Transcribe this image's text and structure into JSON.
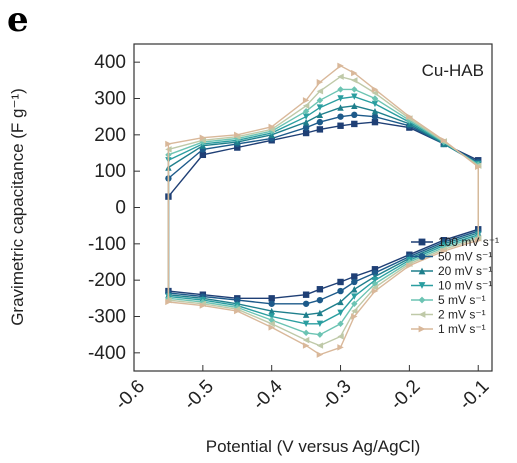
{
  "panel_letter": "e",
  "chart_data": {
    "type": "line",
    "title": "",
    "annotation": "Cu-HAB",
    "xlabel": "Potential (V versus Ag/AgCl)",
    "ylabel": "Gravimetric capacitance (F g⁻¹)",
    "xlim": [
      -0.6,
      -0.08
    ],
    "ylim": [
      -450,
      450
    ],
    "x_ticks": [
      "-0.6",
      "-0.5",
      "-0.4",
      "-0.3",
      "-0.2",
      "-0.1"
    ],
    "x_tick_values": [
      -0.6,
      -0.5,
      -0.4,
      -0.3,
      -0.2,
      -0.1
    ],
    "y_ticks": [
      "400",
      "300",
      "200",
      "100",
      "0",
      "-100",
      "-200",
      "-300",
      "-400"
    ],
    "y_tick_values": [
      400,
      300,
      200,
      100,
      0,
      -100,
      -200,
      -300,
      -400
    ],
    "grid": false,
    "legend_position": "bottom-right",
    "x": [
      -0.55,
      -0.5,
      -0.45,
      -0.4,
      -0.35,
      -0.33,
      -0.3,
      -0.28,
      -0.25,
      -0.2,
      -0.15,
      -0.1
    ],
    "series": [
      {
        "name": "100 mV s⁻¹",
        "color": "#1f3f75",
        "marker": "square",
        "upper": [
          30,
          145,
          165,
          185,
          205,
          215,
          225,
          230,
          235,
          220,
          175,
          130
        ],
        "lower": [
          -230,
          -240,
          -250,
          -250,
          -240,
          -225,
          -205,
          -190,
          -170,
          -130,
          -90,
          -60
        ]
      },
      {
        "name": "50 mV s⁻¹",
        "color": "#1d5a8a",
        "marker": "circle",
        "upper": [
          80,
          160,
          175,
          190,
          220,
          235,
          250,
          255,
          250,
          225,
          175,
          125
        ],
        "lower": [
          -235,
          -245,
          -255,
          -265,
          -265,
          -255,
          -230,
          -205,
          -180,
          -135,
          -95,
          -65
        ]
      },
      {
        "name": "20 mV s⁻¹",
        "color": "#1f7f8c",
        "marker": "triangle-up",
        "upper": [
          110,
          170,
          180,
          200,
          235,
          255,
          275,
          280,
          265,
          230,
          175,
          120
        ],
        "lower": [
          -240,
          -250,
          -265,
          -285,
          -295,
          -290,
          -260,
          -225,
          -190,
          -140,
          -100,
          -70
        ]
      },
      {
        "name": "10 mV s⁻¹",
        "color": "#2a9ea0",
        "marker": "triangle-down",
        "upper": [
          130,
          175,
          185,
          205,
          250,
          275,
          300,
          305,
          285,
          235,
          178,
          120
        ],
        "lower": [
          -245,
          -255,
          -270,
          -300,
          -320,
          -320,
          -290,
          -245,
          -200,
          -145,
          -105,
          -75
        ]
      },
      {
        "name": "5 mV s⁻¹",
        "color": "#6cc4b3",
        "marker": "diamond",
        "upper": [
          145,
          180,
          190,
          210,
          265,
          295,
          325,
          325,
          300,
          240,
          180,
          118
        ],
        "lower": [
          -250,
          -260,
          -275,
          -310,
          -345,
          -350,
          -320,
          -265,
          -210,
          -150,
          -110,
          -80
        ]
      },
      {
        "name": "2 mV s⁻¹",
        "color": "#bfc9a8",
        "marker": "triangle-left",
        "upper": [
          160,
          185,
          195,
          215,
          280,
          320,
          360,
          350,
          315,
          245,
          182,
          115
        ],
        "lower": [
          -255,
          -265,
          -280,
          -320,
          -365,
          -380,
          -355,
          -285,
          -220,
          -155,
          -115,
          -85
        ]
      },
      {
        "name": "1 mV s⁻¹",
        "color": "#d9b89a",
        "marker": "triangle-right",
        "upper": [
          175,
          192,
          200,
          222,
          295,
          345,
          390,
          370,
          325,
          250,
          185,
          112
        ],
        "lower": [
          -260,
          -270,
          -285,
          -330,
          -380,
          -405,
          -385,
          -300,
          -230,
          -160,
          -120,
          -90
        ]
      }
    ]
  }
}
